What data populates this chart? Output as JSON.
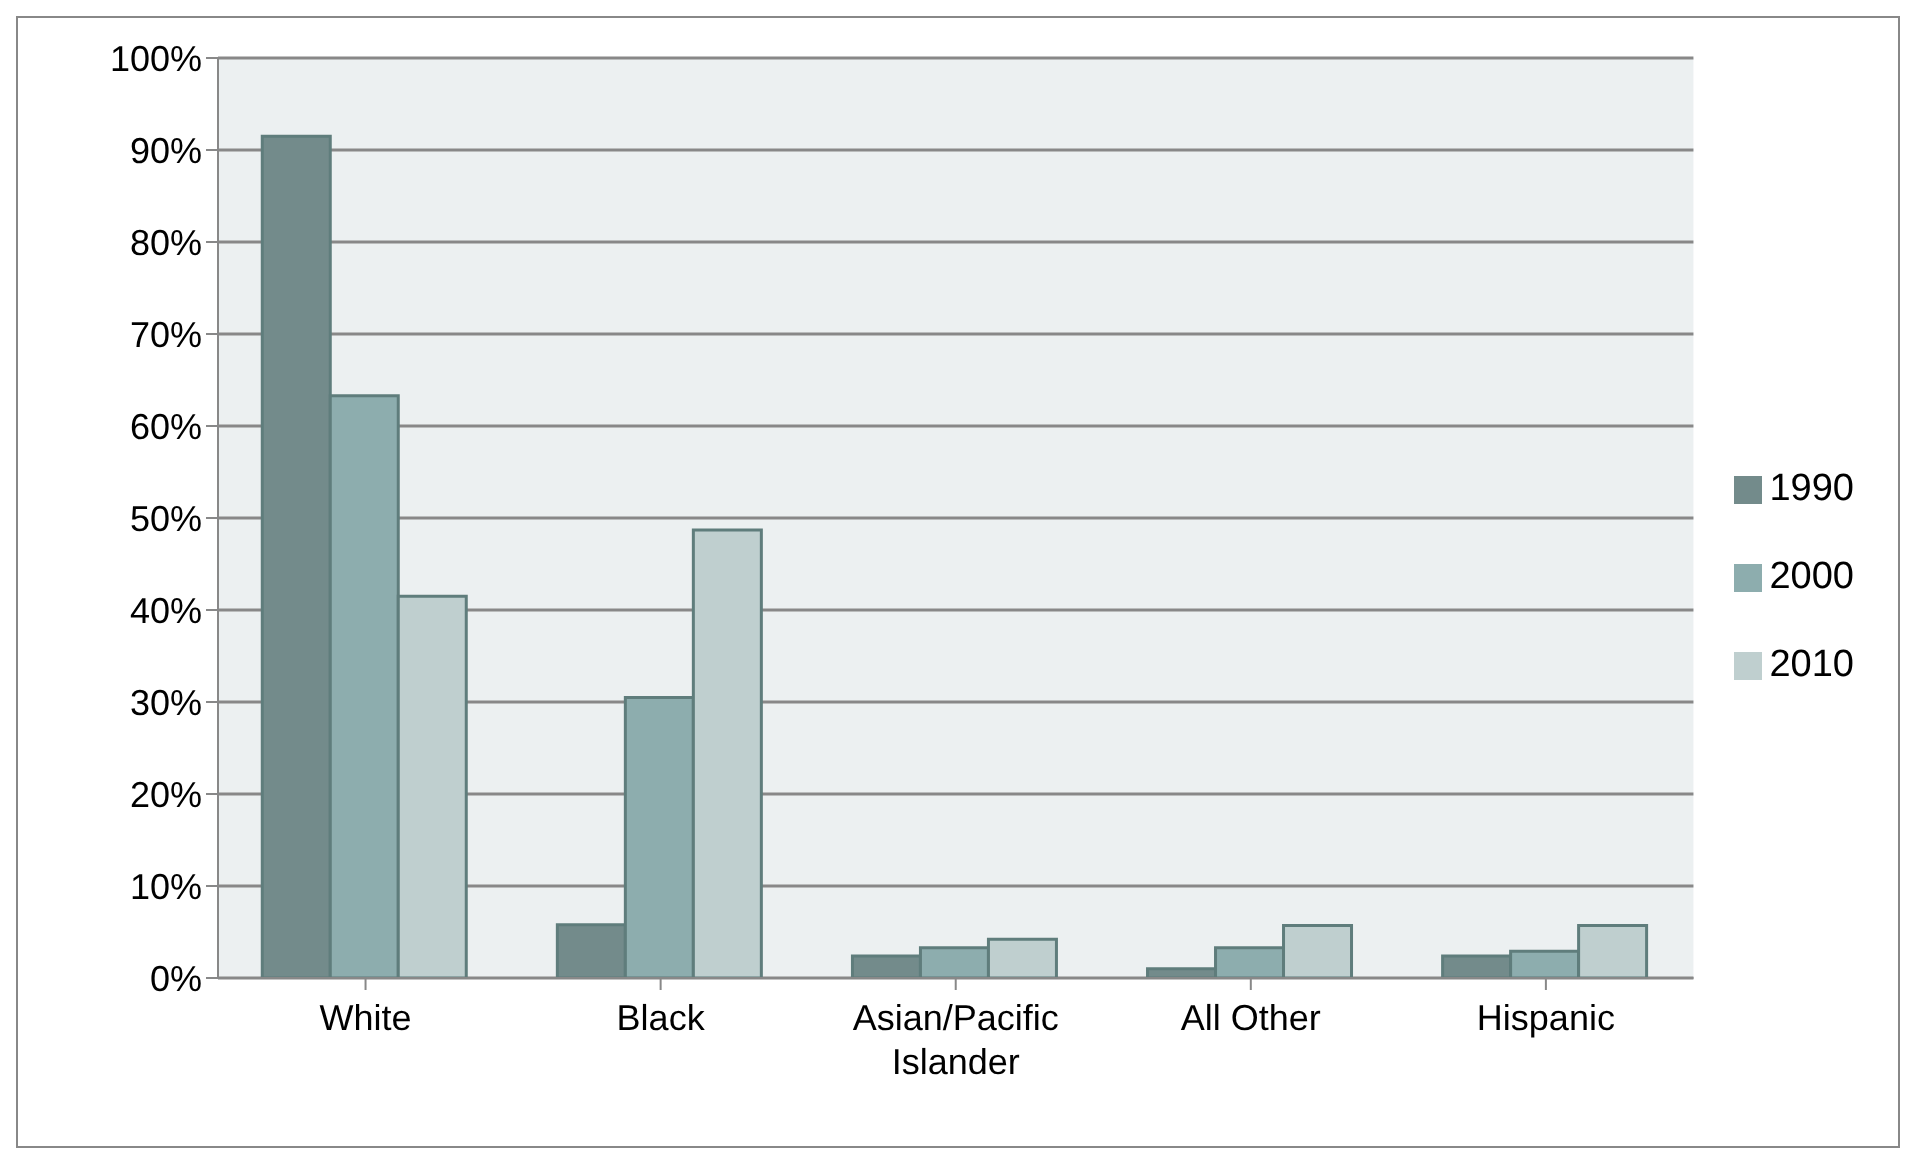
{
  "chart_data": {
    "type": "bar",
    "categories": [
      "White",
      "Black",
      "Asian/Pacific Islander",
      "All Other",
      "Hispanic"
    ],
    "series": [
      {
        "name": "1990",
        "color": "#738b8b",
        "values": [
          91.5,
          5.8,
          2.4,
          1.0,
          2.4
        ]
      },
      {
        "name": "2000",
        "color": "#8dadae",
        "values": [
          63.3,
          30.5,
          3.3,
          3.3,
          2.9
        ]
      },
      {
        "name": "2010",
        "color": "#bfcfcf",
        "values": [
          41.5,
          48.7,
          4.2,
          5.7,
          5.7
        ]
      }
    ],
    "ylim": [
      0,
      100
    ],
    "yticks": [
      {
        "value": 0,
        "label": "0%"
      },
      {
        "value": 10,
        "label": "10%"
      },
      {
        "value": 20,
        "label": "20%"
      },
      {
        "value": 30,
        "label": "30%"
      },
      {
        "value": 40,
        "label": "40%"
      },
      {
        "value": 50,
        "label": "50%"
      },
      {
        "value": 60,
        "label": "60%"
      },
      {
        "value": 70,
        "label": "70%"
      },
      {
        "value": 80,
        "label": "80%"
      },
      {
        "value": 90,
        "label": "90%"
      },
      {
        "value": 100,
        "label": "100%"
      }
    ],
    "grid": "y",
    "legend": "right"
  }
}
